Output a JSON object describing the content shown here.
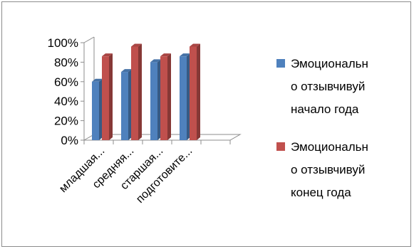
{
  "chart_data": {
    "type": "bar",
    "title": "",
    "xlabel": "",
    "ylabel": "",
    "categories": [
      "младшая...",
      "средняя...",
      "старшая...",
      "подготовите..."
    ],
    "series": [
      {
        "name": "Эмоциональн о отзывчивуй начало года",
        "legend_lines": [
          "Эмоциональн",
          "о отзывчивуй",
          "начало года"
        ],
        "color": "#4f81bd",
        "values": [
          0.6,
          0.7,
          0.8,
          0.86
        ]
      },
      {
        "name": "Эмоциональн о отзывчивуй конец года",
        "legend_lines": [
          "Эмоциональн",
          "о отзывчивуй",
          "конец года"
        ],
        "color": "#c0504d",
        "values": [
          0.86,
          0.96,
          0.86,
          0.96
        ]
      }
    ],
    "yticks": [
      "0%",
      "20%",
      "40%",
      "60%",
      "80%",
      "100%"
    ],
    "ylim": [
      0,
      1
    ],
    "grid": false,
    "legend_position": "right"
  }
}
